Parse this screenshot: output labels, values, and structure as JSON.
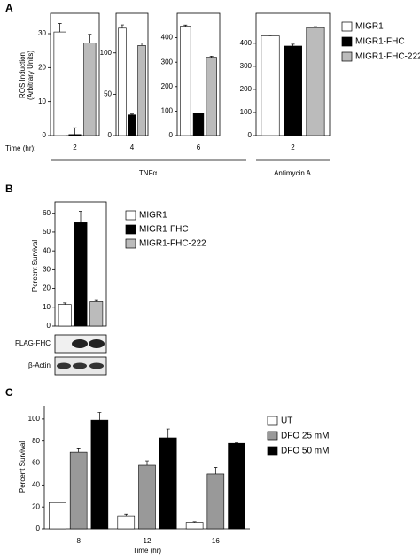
{
  "panels": [
    {
      "label": "A",
      "row_label": "Time (hr):",
      "groups": [
        "TNFα",
        "Antimycin A"
      ]
    },
    {
      "label": "B",
      "blots": [
        "FLAG-FHC",
        "β-Actin"
      ]
    },
    {
      "label": "C"
    }
  ],
  "chart_data": [
    {
      "type": "bar",
      "ylabel": [
        "ROS Induction",
        "(Arbitrary Units)"
      ],
      "categories": [
        "2"
      ],
      "series": [
        {
          "color": "#ffffff",
          "values": [
            30.5
          ],
          "errors": [
            2.5
          ]
        },
        {
          "color": "#000000",
          "values": [
            0.3
          ],
          "errors": [
            2
          ]
        },
        {
          "color": "#bbbbbb",
          "values": [
            27.3
          ],
          "errors": [
            2.5
          ]
        }
      ],
      "ylim": [
        0,
        36
      ],
      "yticks": [
        0,
        10,
        20,
        30
      ]
    },
    {
      "type": "bar",
      "categories": [
        "4"
      ],
      "series": [
        {
          "color": "#ffffff",
          "values": [
            130
          ],
          "errors": [
            4
          ]
        },
        {
          "color": "#000000",
          "values": [
            25
          ],
          "errors": [
            1
          ]
        },
        {
          "color": "#bbbbbb",
          "values": [
            109
          ],
          "errors": [
            3
          ]
        }
      ],
      "ylim": [
        0,
        148
      ],
      "yticks": [
        0,
        50,
        100
      ]
    },
    {
      "type": "bar",
      "categories": [
        "6"
      ],
      "series": [
        {
          "color": "#ffffff",
          "values": [
            447
          ],
          "errors": [
            5
          ]
        },
        {
          "color": "#000000",
          "values": [
            91
          ],
          "errors": [
            2
          ]
        },
        {
          "color": "#bbbbbb",
          "values": [
            320
          ],
          "errors": [
            5
          ]
        }
      ],
      "ylim": [
        0,
        500
      ],
      "yticks": [
        0,
        100,
        200,
        300,
        400
      ]
    },
    {
      "type": "bar",
      "categories": [
        "2"
      ],
      "legend": "right",
      "series": [
        {
          "name": "MIGR1",
          "color": "#ffffff",
          "values": [
            432
          ],
          "errors": [
            3
          ]
        },
        {
          "name": "MIGR1-FHC",
          "color": "#000000",
          "values": [
            388
          ],
          "errors": [
            8
          ]
        },
        {
          "name": "MIGR1-FHC-222",
          "color": "#bbbbbb",
          "values": [
            468
          ],
          "errors": [
            4
          ]
        }
      ],
      "ylim": [
        0,
        530
      ],
      "yticks": [
        0,
        100,
        200,
        300,
        400
      ]
    },
    {
      "type": "bar",
      "ylabel": "Percent Survival",
      "categories": [
        null
      ],
      "legend": "right",
      "series": [
        {
          "name": "MIGR1",
          "color": "#ffffff",
          "values": [
            11.5
          ],
          "errors": [
            0.8
          ]
        },
        {
          "name": "MIGR1-FHC",
          "color": "#000000",
          "values": [
            55
          ],
          "errors": [
            6
          ]
        },
        {
          "name": "MIGR1-FHC-222",
          "color": "#bbbbbb",
          "values": [
            13
          ],
          "errors": [
            0.6
          ]
        }
      ],
      "ylim": [
        0,
        66
      ],
      "yticks": [
        0,
        10,
        20,
        30,
        40,
        50,
        60
      ]
    },
    {
      "type": "bar",
      "ylabel": "Percent Survival",
      "xlabel": "Time (hr)",
      "categories": [
        "8",
        "12",
        "16"
      ],
      "legend": "right",
      "series": [
        {
          "name": "UT",
          "color": "#ffffff",
          "values": [
            24,
            12,
            6
          ],
          "errors": [
            0.7,
            1.5,
            0.6
          ]
        },
        {
          "name": "DFO 25 mM",
          "color": "#999999",
          "values": [
            70,
            58,
            50
          ],
          "errors": [
            3,
            4,
            6
          ]
        },
        {
          "name": "DFO 50 mM",
          "color": "#000000",
          "values": [
            99,
            83,
            78
          ],
          "errors": [
            7,
            8,
            0.5
          ]
        }
      ],
      "ylim": [
        0,
        112
      ],
      "yticks": [
        0,
        20,
        40,
        60,
        80,
        100
      ]
    }
  ]
}
